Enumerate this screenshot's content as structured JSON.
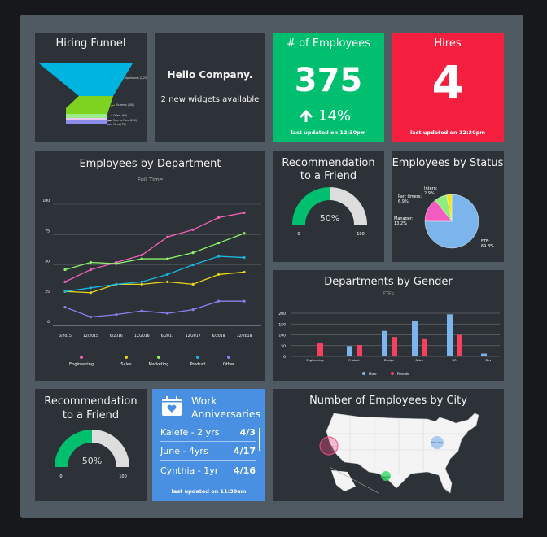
{
  "colors": {
    "card_bg": "#2d3238",
    "frame": "#4f5a63",
    "green": "#00bf6f",
    "red": "#f5203f",
    "blue": "#4a90e2"
  },
  "funnel": {
    "title": "Hiring Funnel",
    "stages": [
      {
        "label": "Applicants (1,200)",
        "color": "#00b4e0"
      },
      {
        "label": "Screens (400)",
        "color": "#7ed321"
      },
      {
        "label": "Offers (60)",
        "color": "#9beb8a"
      },
      {
        "label": "Face to Face (200)",
        "color": "#e8c8f0"
      },
      {
        "label": "Hires (75)",
        "color": "#8b8de8"
      }
    ]
  },
  "hello": {
    "title": "Hello Company.",
    "subtitle": "2 new widgets available"
  },
  "employees": {
    "title": "# of Employees",
    "value": "375",
    "change": "14%",
    "change_icon": "arrow-up-icon",
    "updated": "last updated on 12:30pm"
  },
  "hires": {
    "title": "Hires",
    "value": "4",
    "updated": "last updated on 12:30pm"
  },
  "dept_chart": {
    "title": "Employees by Department",
    "subtitle": "Full Time"
  },
  "recommendation": {
    "title_line1": "Recommendation",
    "title_line2": "to a Friend",
    "value": 50,
    "value_label": "50%",
    "min": "0",
    "max": "100"
  },
  "recommendation2": {
    "title_line1": "Recommendation",
    "title_line2": "to a Friend",
    "value": 50,
    "value_label": "50%",
    "min": "0",
    "max": "100"
  },
  "status": {
    "title": "Employees by Status"
  },
  "gender": {
    "title": "Departments by Gender",
    "subtitle": "FTEs"
  },
  "anniversaries": {
    "title_line1": "Work",
    "title_line2": "Anniversaries",
    "icon": "calendar-heart-icon",
    "items": [
      {
        "name": "Kalefe - 2 yrs",
        "date": "4/3"
      },
      {
        "name": "June - 4yrs",
        "date": "4/17"
      },
      {
        "name": "Cynthia - 1yr",
        "date": "4/16"
      }
    ],
    "updated": "last updated on 11:30am"
  },
  "city": {
    "title": "Number of Employees by City",
    "markers": [
      {
        "label": "San Francisco",
        "color": "#f0508a"
      },
      {
        "label": "Austin",
        "color": "#3ddc6a"
      },
      {
        "label": "New York",
        "color": "#8ab8f0"
      }
    ]
  },
  "chart_data": [
    {
      "type": "line",
      "title": "Employees by Department",
      "subtitle": "Full Time",
      "categories": [
        "6/2015",
        "12/2015",
        "6/2016",
        "12/2016",
        "6/2017",
        "12/2017",
        "6/2018",
        "12/2018"
      ],
      "ylim": [
        0,
        100
      ],
      "yticks": [
        "0",
        "25",
        "50",
        "75",
        "100"
      ],
      "grid": true,
      "legend": "bottom",
      "series": [
        {
          "name": "Engineering",
          "color": "#f062b8",
          "values": [
            36,
            46,
            52,
            58,
            73,
            79,
            89,
            93
          ]
        },
        {
          "name": "Sales",
          "color": "#e6d51a",
          "values": [
            28,
            27,
            34,
            34,
            36,
            34,
            42,
            44
          ]
        },
        {
          "name": "Marketing",
          "color": "#8ef06a",
          "values": [
            46,
            52,
            51,
            55,
            55,
            60,
            68,
            76
          ]
        },
        {
          "name": "Product",
          "color": "#16b8e0",
          "values": [
            28,
            31,
            34,
            36,
            42,
            50,
            57,
            56
          ]
        },
        {
          "name": "Other",
          "color": "#8b80f0",
          "values": [
            15,
            7,
            9,
            12,
            10,
            13,
            20,
            20
          ]
        }
      ]
    },
    {
      "type": "pie",
      "title": "Employees by Status",
      "slices": [
        {
          "name": "FTE:",
          "value": 69.3,
          "label": "69.3%",
          "color": "#7cb5ec"
        },
        {
          "name": "Manager:",
          "value": 13.2,
          "label": "13.2%",
          "color": "#f45bc0"
        },
        {
          "name": "Part timers:",
          "value": 6.9,
          "label": "6.9%",
          "color": "#90ed7d"
        },
        {
          "name": "Intern:",
          "value": 2.9,
          "label": "2.9%",
          "color": "#f7e416"
        }
      ]
    },
    {
      "type": "bar",
      "title": "Departments by Gender",
      "subtitle": "FTEs",
      "categories": [
        "Engineering",
        "Product",
        "Design",
        "Sales",
        "HR",
        "Dev"
      ],
      "ylim": [
        0,
        200
      ],
      "yticks": [
        "0",
        "50",
        "100",
        "150",
        "200"
      ],
      "grid": true,
      "legend": "bottom",
      "series": [
        {
          "name": "Male",
          "color": "#7cb5ec",
          "values": [
            3,
            48,
            118,
            163,
            195,
            13
          ]
        },
        {
          "name": "Female",
          "color": "#f5405e",
          "values": [
            63,
            53,
            90,
            80,
            100,
            0
          ]
        }
      ]
    }
  ]
}
